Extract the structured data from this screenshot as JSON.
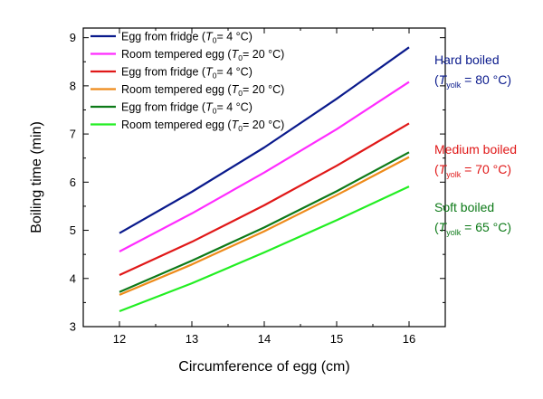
{
  "chart_data": {
    "type": "line",
    "xlabel": "Circumference of egg (cm)",
    "ylabel": "Boiling time (min)",
    "xlim": [
      11.5,
      16.5
    ],
    "ylim": [
      3,
      9.2
    ],
    "x_ticks": [
      12,
      13,
      14,
      15,
      16
    ],
    "y_ticks": [
      3,
      4,
      5,
      6,
      7,
      8,
      9
    ],
    "grid": false,
    "legend_position": "top-left",
    "legend_entries": [
      {
        "main": "Egg from fridge (",
        "sym": "T",
        "sub": "0",
        "rest": "= 4 °C)",
        "series": 0
      },
      {
        "main": "Room tempered egg (",
        "sym": "T",
        "sub": "0",
        "rest": "= 20 °C)",
        "series": 1
      },
      {
        "main": "Egg from fridge (",
        "sym": "T",
        "sub": "0",
        "rest": "= 4 °C)",
        "series": 2
      },
      {
        "main": "Room tempered egg (",
        "sym": "T",
        "sub": "0",
        "rest": "= 20 °C)",
        "series": 3
      },
      {
        "main": "Egg from fridge (",
        "sym": "T",
        "sub": "0",
        "rest": "= 4 °C)",
        "series": 4
      },
      {
        "main": "Room tempered egg (",
        "sym": "T",
        "sub": "0",
        "rest": "= 20 °C)",
        "series": 5
      }
    ],
    "series": [
      {
        "color": "#0a1a8c",
        "x": [
          12,
          13,
          14,
          15,
          16
        ],
        "values": [
          4.94,
          5.8,
          6.72,
          7.73,
          8.8
        ]
      },
      {
        "color": "#ff2cff",
        "x": [
          12,
          13,
          14,
          15,
          16
        ],
        "values": [
          4.56,
          5.35,
          6.2,
          7.1,
          8.08
        ]
      },
      {
        "color": "#e01818",
        "x": [
          12,
          13,
          14,
          15,
          16
        ],
        "values": [
          4.07,
          4.76,
          5.52,
          6.34,
          7.22
        ]
      },
      {
        "color": "#ee8b1a",
        "x": [
          12,
          13,
          14,
          15,
          16
        ],
        "values": [
          3.66,
          4.29,
          4.98,
          5.73,
          6.52
        ]
      },
      {
        "color": "#0d7a18",
        "x": [
          12,
          13,
          14,
          15,
          16
        ],
        "values": [
          3.72,
          4.37,
          5.06,
          5.81,
          6.62
        ]
      },
      {
        "color": "#22ee22",
        "x": [
          12,
          13,
          14,
          15,
          16
        ],
        "values": [
          3.32,
          3.9,
          4.54,
          5.21,
          5.91
        ]
      }
    ],
    "annotations": [
      {
        "line1": "Hard boiled",
        "open": "(",
        "sym": "T",
        "sub": "yolk",
        "rest": " = 80 °C)",
        "color": "#0a1a8c"
      },
      {
        "line1": "Medium boiled",
        "open": "(",
        "sym": "T",
        "sub": "yolk",
        "rest": " = 70 °C)",
        "color": "#e01818"
      },
      {
        "line1": "Soft boiled",
        "open": "(",
        "sym": "T",
        "sub": "yolk",
        "rest": " = 65 °C)",
        "color": "#0d7a18"
      }
    ]
  }
}
